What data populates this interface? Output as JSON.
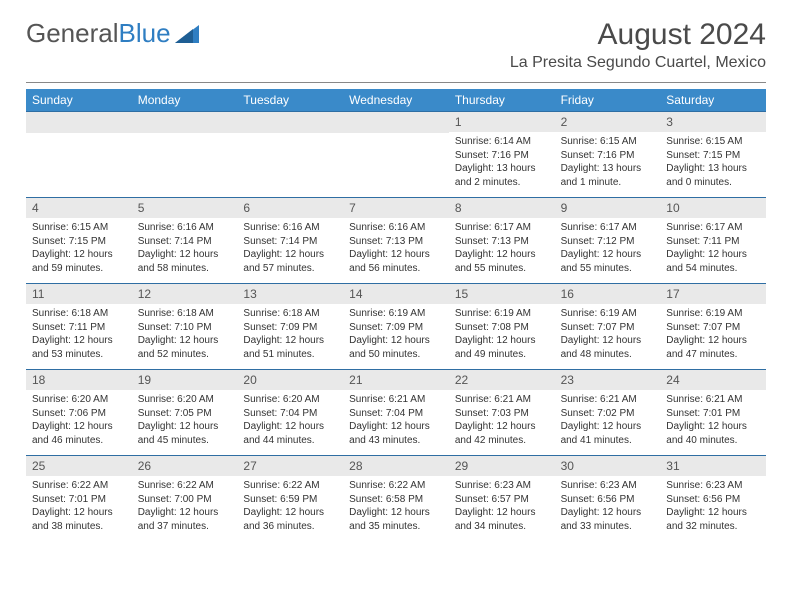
{
  "logo": {
    "text1": "General",
    "text2": "Blue"
  },
  "title": "August 2024",
  "location": "La Presita Segundo Cuartel, Mexico",
  "colors": {
    "header_bg": "#3a8ac9",
    "row_border": "#2f6ea3",
    "daynum_bg": "#e9e9e9",
    "logo_blue": "#2f7ec2",
    "text": "#333333"
  },
  "weekdays": [
    "Sunday",
    "Monday",
    "Tuesday",
    "Wednesday",
    "Thursday",
    "Friday",
    "Saturday"
  ],
  "weeks": [
    [
      {
        "n": "",
        "sr": "",
        "ss": "",
        "dl": ""
      },
      {
        "n": "",
        "sr": "",
        "ss": "",
        "dl": ""
      },
      {
        "n": "",
        "sr": "",
        "ss": "",
        "dl": ""
      },
      {
        "n": "",
        "sr": "",
        "ss": "",
        "dl": ""
      },
      {
        "n": "1",
        "sr": "Sunrise: 6:14 AM",
        "ss": "Sunset: 7:16 PM",
        "dl": "Daylight: 13 hours and 2 minutes."
      },
      {
        "n": "2",
        "sr": "Sunrise: 6:15 AM",
        "ss": "Sunset: 7:16 PM",
        "dl": "Daylight: 13 hours and 1 minute."
      },
      {
        "n": "3",
        "sr": "Sunrise: 6:15 AM",
        "ss": "Sunset: 7:15 PM",
        "dl": "Daylight: 13 hours and 0 minutes."
      }
    ],
    [
      {
        "n": "4",
        "sr": "Sunrise: 6:15 AM",
        "ss": "Sunset: 7:15 PM",
        "dl": "Daylight: 12 hours and 59 minutes."
      },
      {
        "n": "5",
        "sr": "Sunrise: 6:16 AM",
        "ss": "Sunset: 7:14 PM",
        "dl": "Daylight: 12 hours and 58 minutes."
      },
      {
        "n": "6",
        "sr": "Sunrise: 6:16 AM",
        "ss": "Sunset: 7:14 PM",
        "dl": "Daylight: 12 hours and 57 minutes."
      },
      {
        "n": "7",
        "sr": "Sunrise: 6:16 AM",
        "ss": "Sunset: 7:13 PM",
        "dl": "Daylight: 12 hours and 56 minutes."
      },
      {
        "n": "8",
        "sr": "Sunrise: 6:17 AM",
        "ss": "Sunset: 7:13 PM",
        "dl": "Daylight: 12 hours and 55 minutes."
      },
      {
        "n": "9",
        "sr": "Sunrise: 6:17 AM",
        "ss": "Sunset: 7:12 PM",
        "dl": "Daylight: 12 hours and 55 minutes."
      },
      {
        "n": "10",
        "sr": "Sunrise: 6:17 AM",
        "ss": "Sunset: 7:11 PM",
        "dl": "Daylight: 12 hours and 54 minutes."
      }
    ],
    [
      {
        "n": "11",
        "sr": "Sunrise: 6:18 AM",
        "ss": "Sunset: 7:11 PM",
        "dl": "Daylight: 12 hours and 53 minutes."
      },
      {
        "n": "12",
        "sr": "Sunrise: 6:18 AM",
        "ss": "Sunset: 7:10 PM",
        "dl": "Daylight: 12 hours and 52 minutes."
      },
      {
        "n": "13",
        "sr": "Sunrise: 6:18 AM",
        "ss": "Sunset: 7:09 PM",
        "dl": "Daylight: 12 hours and 51 minutes."
      },
      {
        "n": "14",
        "sr": "Sunrise: 6:19 AM",
        "ss": "Sunset: 7:09 PM",
        "dl": "Daylight: 12 hours and 50 minutes."
      },
      {
        "n": "15",
        "sr": "Sunrise: 6:19 AM",
        "ss": "Sunset: 7:08 PM",
        "dl": "Daylight: 12 hours and 49 minutes."
      },
      {
        "n": "16",
        "sr": "Sunrise: 6:19 AM",
        "ss": "Sunset: 7:07 PM",
        "dl": "Daylight: 12 hours and 48 minutes."
      },
      {
        "n": "17",
        "sr": "Sunrise: 6:19 AM",
        "ss": "Sunset: 7:07 PM",
        "dl": "Daylight: 12 hours and 47 minutes."
      }
    ],
    [
      {
        "n": "18",
        "sr": "Sunrise: 6:20 AM",
        "ss": "Sunset: 7:06 PM",
        "dl": "Daylight: 12 hours and 46 minutes."
      },
      {
        "n": "19",
        "sr": "Sunrise: 6:20 AM",
        "ss": "Sunset: 7:05 PM",
        "dl": "Daylight: 12 hours and 45 minutes."
      },
      {
        "n": "20",
        "sr": "Sunrise: 6:20 AM",
        "ss": "Sunset: 7:04 PM",
        "dl": "Daylight: 12 hours and 44 minutes."
      },
      {
        "n": "21",
        "sr": "Sunrise: 6:21 AM",
        "ss": "Sunset: 7:04 PM",
        "dl": "Daylight: 12 hours and 43 minutes."
      },
      {
        "n": "22",
        "sr": "Sunrise: 6:21 AM",
        "ss": "Sunset: 7:03 PM",
        "dl": "Daylight: 12 hours and 42 minutes."
      },
      {
        "n": "23",
        "sr": "Sunrise: 6:21 AM",
        "ss": "Sunset: 7:02 PM",
        "dl": "Daylight: 12 hours and 41 minutes."
      },
      {
        "n": "24",
        "sr": "Sunrise: 6:21 AM",
        "ss": "Sunset: 7:01 PM",
        "dl": "Daylight: 12 hours and 40 minutes."
      }
    ],
    [
      {
        "n": "25",
        "sr": "Sunrise: 6:22 AM",
        "ss": "Sunset: 7:01 PM",
        "dl": "Daylight: 12 hours and 38 minutes."
      },
      {
        "n": "26",
        "sr": "Sunrise: 6:22 AM",
        "ss": "Sunset: 7:00 PM",
        "dl": "Daylight: 12 hours and 37 minutes."
      },
      {
        "n": "27",
        "sr": "Sunrise: 6:22 AM",
        "ss": "Sunset: 6:59 PM",
        "dl": "Daylight: 12 hours and 36 minutes."
      },
      {
        "n": "28",
        "sr": "Sunrise: 6:22 AM",
        "ss": "Sunset: 6:58 PM",
        "dl": "Daylight: 12 hours and 35 minutes."
      },
      {
        "n": "29",
        "sr": "Sunrise: 6:23 AM",
        "ss": "Sunset: 6:57 PM",
        "dl": "Daylight: 12 hours and 34 minutes."
      },
      {
        "n": "30",
        "sr": "Sunrise: 6:23 AM",
        "ss": "Sunset: 6:56 PM",
        "dl": "Daylight: 12 hours and 33 minutes."
      },
      {
        "n": "31",
        "sr": "Sunrise: 6:23 AM",
        "ss": "Sunset: 6:56 PM",
        "dl": "Daylight: 12 hours and 32 minutes."
      }
    ]
  ]
}
